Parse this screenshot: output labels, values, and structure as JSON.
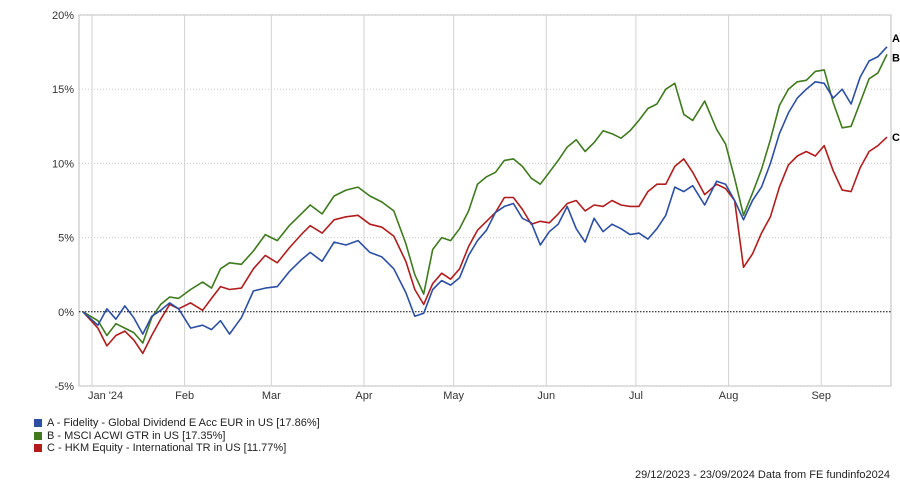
{
  "chart_data": {
    "type": "line",
    "y_ticks": [
      "20%",
      "15%",
      "10%",
      "5%",
      "0%",
      "-5%"
    ],
    "y_tick_values": [
      20,
      15,
      10,
      5,
      0,
      -5
    ],
    "ylim": [
      -5,
      20
    ],
    "x_ticks": [
      "Jan '24",
      "Feb",
      "Mar",
      "Apr",
      "May",
      "Jun",
      "Jul",
      "Aug",
      "Sep"
    ],
    "x_tick_dates": [
      "2024-01-01",
      "2024-02-01",
      "2024-03-01",
      "2024-04-01",
      "2024-05-01",
      "2024-06-01",
      "2024-07-01",
      "2024-08-01",
      "2024-09-01"
    ],
    "xlim": [
      "2023-12-29",
      "2024-09-23"
    ],
    "grid": true,
    "zero_line": "dotted",
    "series": [
      {
        "name": "A - Fidelity - Global Dividend E Acc EUR in US [17.86%]",
        "end_label": "A",
        "color": "#2c4fa3",
        "points": [
          [
            "2023-12-29",
            0
          ],
          [
            "2024-01-03",
            -0.9
          ],
          [
            "2024-01-06",
            0.2
          ],
          [
            "2024-01-09",
            -0.5
          ],
          [
            "2024-01-12",
            0.4
          ],
          [
            "2024-01-15",
            -0.4
          ],
          [
            "2024-01-18",
            -1.5
          ],
          [
            "2024-01-21",
            -0.3
          ],
          [
            "2024-01-24",
            0.1
          ],
          [
            "2024-01-27",
            0.6
          ],
          [
            "2024-01-30",
            0.2
          ],
          [
            "2024-02-03",
            -1.1
          ],
          [
            "2024-02-07",
            -0.9
          ],
          [
            "2024-02-10",
            -1.2
          ],
          [
            "2024-02-13",
            -0.6
          ],
          [
            "2024-02-16",
            -1.5
          ],
          [
            "2024-02-20",
            -0.4
          ],
          [
            "2024-02-24",
            1.4
          ],
          [
            "2024-02-28",
            1.6
          ],
          [
            "2024-03-03",
            1.7
          ],
          [
            "2024-03-07",
            2.7
          ],
          [
            "2024-03-11",
            3.5
          ],
          [
            "2024-03-14",
            4.0
          ],
          [
            "2024-03-18",
            3.4
          ],
          [
            "2024-03-22",
            4.7
          ],
          [
            "2024-03-26",
            4.5
          ],
          [
            "2024-03-30",
            4.8
          ],
          [
            "2024-04-03",
            4.0
          ],
          [
            "2024-04-07",
            3.7
          ],
          [
            "2024-04-11",
            2.9
          ],
          [
            "2024-04-15",
            1.3
          ],
          [
            "2024-04-18",
            -0.3
          ],
          [
            "2024-04-21",
            -0.1
          ],
          [
            "2024-04-24",
            1.5
          ],
          [
            "2024-04-27",
            2.1
          ],
          [
            "2024-04-30",
            1.8
          ],
          [
            "2024-05-03",
            2.3
          ],
          [
            "2024-05-06",
            3.8
          ],
          [
            "2024-05-09",
            4.8
          ],
          [
            "2024-05-12",
            5.5
          ],
          [
            "2024-05-15",
            6.7
          ],
          [
            "2024-05-18",
            7.1
          ],
          [
            "2024-05-21",
            7.3
          ],
          [
            "2024-05-24",
            6.3
          ],
          [
            "2024-05-27",
            6.0
          ],
          [
            "2024-05-30",
            4.5
          ],
          [
            "2024-06-02",
            5.4
          ],
          [
            "2024-06-05",
            5.9
          ],
          [
            "2024-06-08",
            7.1
          ],
          [
            "2024-06-11",
            5.6
          ],
          [
            "2024-06-14",
            4.7
          ],
          [
            "2024-06-17",
            6.3
          ],
          [
            "2024-06-20",
            5.4
          ],
          [
            "2024-06-23",
            5.9
          ],
          [
            "2024-06-26",
            5.6
          ],
          [
            "2024-06-29",
            5.2
          ],
          [
            "2024-07-02",
            5.3
          ],
          [
            "2024-07-05",
            4.9
          ],
          [
            "2024-07-08",
            5.6
          ],
          [
            "2024-07-11",
            6.5
          ],
          [
            "2024-07-14",
            8.4
          ],
          [
            "2024-07-17",
            8.1
          ],
          [
            "2024-07-20",
            8.5
          ],
          [
            "2024-07-24",
            7.2
          ],
          [
            "2024-07-28",
            8.8
          ],
          [
            "2024-07-31",
            8.6
          ],
          [
            "2024-08-03",
            7.5
          ],
          [
            "2024-08-06",
            6.2
          ],
          [
            "2024-08-09",
            7.5
          ],
          [
            "2024-08-12",
            8.4
          ],
          [
            "2024-08-15",
            10.0
          ],
          [
            "2024-08-18",
            12.0
          ],
          [
            "2024-08-21",
            13.4
          ],
          [
            "2024-08-24",
            14.4
          ],
          [
            "2024-08-27",
            15.0
          ],
          [
            "2024-08-30",
            15.5
          ],
          [
            "2024-09-02",
            15.4
          ],
          [
            "2024-09-05",
            14.4
          ],
          [
            "2024-09-08",
            15.0
          ],
          [
            "2024-09-11",
            14.0
          ],
          [
            "2024-09-14",
            15.8
          ],
          [
            "2024-09-17",
            16.9
          ],
          [
            "2024-09-20",
            17.2
          ],
          [
            "2024-09-23",
            17.86
          ]
        ]
      },
      {
        "name": "B - MSCI ACWI GTR in US [17.35%]",
        "end_label": "B",
        "color": "#3f7a1e",
        "points": [
          [
            "2023-12-29",
            0
          ],
          [
            "2024-01-03",
            -0.6
          ],
          [
            "2024-01-06",
            -1.6
          ],
          [
            "2024-01-09",
            -0.8
          ],
          [
            "2024-01-12",
            -1.1
          ],
          [
            "2024-01-15",
            -1.4
          ],
          [
            "2024-01-18",
            -2.1
          ],
          [
            "2024-01-21",
            -0.4
          ],
          [
            "2024-01-24",
            0.5
          ],
          [
            "2024-01-27",
            1.0
          ],
          [
            "2024-01-30",
            0.9
          ],
          [
            "2024-02-03",
            1.5
          ],
          [
            "2024-02-07",
            2.0
          ],
          [
            "2024-02-10",
            1.6
          ],
          [
            "2024-02-13",
            2.9
          ],
          [
            "2024-02-16",
            3.3
          ],
          [
            "2024-02-20",
            3.2
          ],
          [
            "2024-02-24",
            4.1
          ],
          [
            "2024-02-28",
            5.2
          ],
          [
            "2024-03-03",
            4.8
          ],
          [
            "2024-03-07",
            5.8
          ],
          [
            "2024-03-11",
            6.6
          ],
          [
            "2024-03-14",
            7.2
          ],
          [
            "2024-03-18",
            6.6
          ],
          [
            "2024-03-22",
            7.8
          ],
          [
            "2024-03-26",
            8.2
          ],
          [
            "2024-03-30",
            8.4
          ],
          [
            "2024-04-03",
            7.8
          ],
          [
            "2024-04-07",
            7.4
          ],
          [
            "2024-04-11",
            6.8
          ],
          [
            "2024-04-15",
            4.6
          ],
          [
            "2024-04-18",
            2.5
          ],
          [
            "2024-04-21",
            1.2
          ],
          [
            "2024-04-24",
            4.2
          ],
          [
            "2024-04-27",
            5.0
          ],
          [
            "2024-04-30",
            4.8
          ],
          [
            "2024-05-03",
            5.6
          ],
          [
            "2024-05-06",
            6.8
          ],
          [
            "2024-05-09",
            8.6
          ],
          [
            "2024-05-12",
            9.1
          ],
          [
            "2024-05-15",
            9.4
          ],
          [
            "2024-05-18",
            10.2
          ],
          [
            "2024-05-21",
            10.3
          ],
          [
            "2024-05-24",
            9.8
          ],
          [
            "2024-05-27",
            9.0
          ],
          [
            "2024-05-30",
            8.6
          ],
          [
            "2024-06-02",
            9.4
          ],
          [
            "2024-06-05",
            10.2
          ],
          [
            "2024-06-08",
            11.1
          ],
          [
            "2024-06-11",
            11.6
          ],
          [
            "2024-06-14",
            10.8
          ],
          [
            "2024-06-17",
            11.4
          ],
          [
            "2024-06-20",
            12.2
          ],
          [
            "2024-06-23",
            12.0
          ],
          [
            "2024-06-26",
            11.7
          ],
          [
            "2024-06-29",
            12.2
          ],
          [
            "2024-07-02",
            12.9
          ],
          [
            "2024-07-05",
            13.7
          ],
          [
            "2024-07-08",
            14.0
          ],
          [
            "2024-07-11",
            15.0
          ],
          [
            "2024-07-14",
            15.4
          ],
          [
            "2024-07-17",
            13.3
          ],
          [
            "2024-07-20",
            12.9
          ],
          [
            "2024-07-24",
            14.2
          ],
          [
            "2024-07-28",
            12.3
          ],
          [
            "2024-07-31",
            11.3
          ],
          [
            "2024-08-03",
            9.0
          ],
          [
            "2024-08-06",
            6.5
          ],
          [
            "2024-08-09",
            8.0
          ],
          [
            "2024-08-12",
            9.6
          ],
          [
            "2024-08-15",
            11.6
          ],
          [
            "2024-08-18",
            13.9
          ],
          [
            "2024-08-21",
            15.0
          ],
          [
            "2024-08-24",
            15.5
          ],
          [
            "2024-08-27",
            15.6
          ],
          [
            "2024-08-30",
            16.2
          ],
          [
            "2024-09-02",
            16.3
          ],
          [
            "2024-09-05",
            14.1
          ],
          [
            "2024-09-08",
            12.4
          ],
          [
            "2024-09-11",
            12.5
          ],
          [
            "2024-09-14",
            14.1
          ],
          [
            "2024-09-17",
            15.7
          ],
          [
            "2024-09-20",
            16.1
          ],
          [
            "2024-09-23",
            17.35
          ]
        ]
      },
      {
        "name": "C - HKM Equity - International TR in US [11.77%]",
        "end_label": "C",
        "color": "#b11d1d",
        "points": [
          [
            "2023-12-29",
            0
          ],
          [
            "2024-01-03",
            -1.1
          ],
          [
            "2024-01-06",
            -2.3
          ],
          [
            "2024-01-09",
            -1.6
          ],
          [
            "2024-01-12",
            -1.3
          ],
          [
            "2024-01-15",
            -1.9
          ],
          [
            "2024-01-18",
            -2.8
          ],
          [
            "2024-01-21",
            -1.6
          ],
          [
            "2024-01-24",
            -0.5
          ],
          [
            "2024-01-27",
            0.5
          ],
          [
            "2024-01-30",
            0.2
          ],
          [
            "2024-02-03",
            0.6
          ],
          [
            "2024-02-07",
            0.1
          ],
          [
            "2024-02-10",
            0.9
          ],
          [
            "2024-02-13",
            1.7
          ],
          [
            "2024-02-16",
            1.5
          ],
          [
            "2024-02-20",
            1.6
          ],
          [
            "2024-02-24",
            2.9
          ],
          [
            "2024-02-28",
            3.8
          ],
          [
            "2024-03-03",
            3.3
          ],
          [
            "2024-03-07",
            4.3
          ],
          [
            "2024-03-11",
            5.2
          ],
          [
            "2024-03-14",
            5.8
          ],
          [
            "2024-03-18",
            5.3
          ],
          [
            "2024-03-22",
            6.2
          ],
          [
            "2024-03-26",
            6.4
          ],
          [
            "2024-03-30",
            6.5
          ],
          [
            "2024-04-03",
            5.9
          ],
          [
            "2024-04-07",
            5.7
          ],
          [
            "2024-04-11",
            5.1
          ],
          [
            "2024-04-15",
            3.4
          ],
          [
            "2024-04-18",
            1.5
          ],
          [
            "2024-04-21",
            0.5
          ],
          [
            "2024-04-24",
            1.9
          ],
          [
            "2024-04-27",
            2.6
          ],
          [
            "2024-04-30",
            2.2
          ],
          [
            "2024-05-03",
            2.9
          ],
          [
            "2024-05-06",
            4.4
          ],
          [
            "2024-05-09",
            5.5
          ],
          [
            "2024-05-12",
            6.1
          ],
          [
            "2024-05-15",
            6.7
          ],
          [
            "2024-05-18",
            7.7
          ],
          [
            "2024-05-21",
            7.7
          ],
          [
            "2024-05-24",
            6.9
          ],
          [
            "2024-05-27",
            5.9
          ],
          [
            "2024-05-30",
            6.1
          ],
          [
            "2024-06-02",
            6.0
          ],
          [
            "2024-06-05",
            6.6
          ],
          [
            "2024-06-08",
            7.3
          ],
          [
            "2024-06-11",
            7.5
          ],
          [
            "2024-06-14",
            6.8
          ],
          [
            "2024-06-17",
            7.2
          ],
          [
            "2024-06-20",
            7.1
          ],
          [
            "2024-06-23",
            7.5
          ],
          [
            "2024-06-26",
            7.2
          ],
          [
            "2024-06-29",
            7.1
          ],
          [
            "2024-07-02",
            7.1
          ],
          [
            "2024-07-05",
            8.1
          ],
          [
            "2024-07-08",
            8.6
          ],
          [
            "2024-07-11",
            8.6
          ],
          [
            "2024-07-14",
            9.8
          ],
          [
            "2024-07-17",
            10.3
          ],
          [
            "2024-07-20",
            9.4
          ],
          [
            "2024-07-24",
            7.9
          ],
          [
            "2024-07-28",
            8.6
          ],
          [
            "2024-07-31",
            8.3
          ],
          [
            "2024-08-03",
            7.5
          ],
          [
            "2024-08-06",
            3.0
          ],
          [
            "2024-08-09",
            3.9
          ],
          [
            "2024-08-12",
            5.3
          ],
          [
            "2024-08-15",
            6.4
          ],
          [
            "2024-08-18",
            8.4
          ],
          [
            "2024-08-21",
            9.9
          ],
          [
            "2024-08-24",
            10.5
          ],
          [
            "2024-08-27",
            10.8
          ],
          [
            "2024-08-30",
            10.5
          ],
          [
            "2024-09-02",
            11.2
          ],
          [
            "2024-09-05",
            9.5
          ],
          [
            "2024-09-08",
            8.2
          ],
          [
            "2024-09-11",
            8.1
          ],
          [
            "2024-09-14",
            9.7
          ],
          [
            "2024-09-17",
            10.8
          ],
          [
            "2024-09-20",
            11.2
          ],
          [
            "2024-09-23",
            11.77
          ]
        ]
      }
    ]
  },
  "legend": [
    {
      "label": "A - Fidelity - Global Dividend E Acc EUR in US [17.86%]",
      "color": "#2c4fa3"
    },
    {
      "label": "B - MSCI ACWI GTR in US [17.35%]",
      "color": "#3f7a1e"
    },
    {
      "label": "C - HKM Equity - International TR in US [11.77%]",
      "color": "#b11d1d"
    }
  ],
  "footer": "29/12/2023 - 23/09/2024 Data from FE fundinfo2024"
}
